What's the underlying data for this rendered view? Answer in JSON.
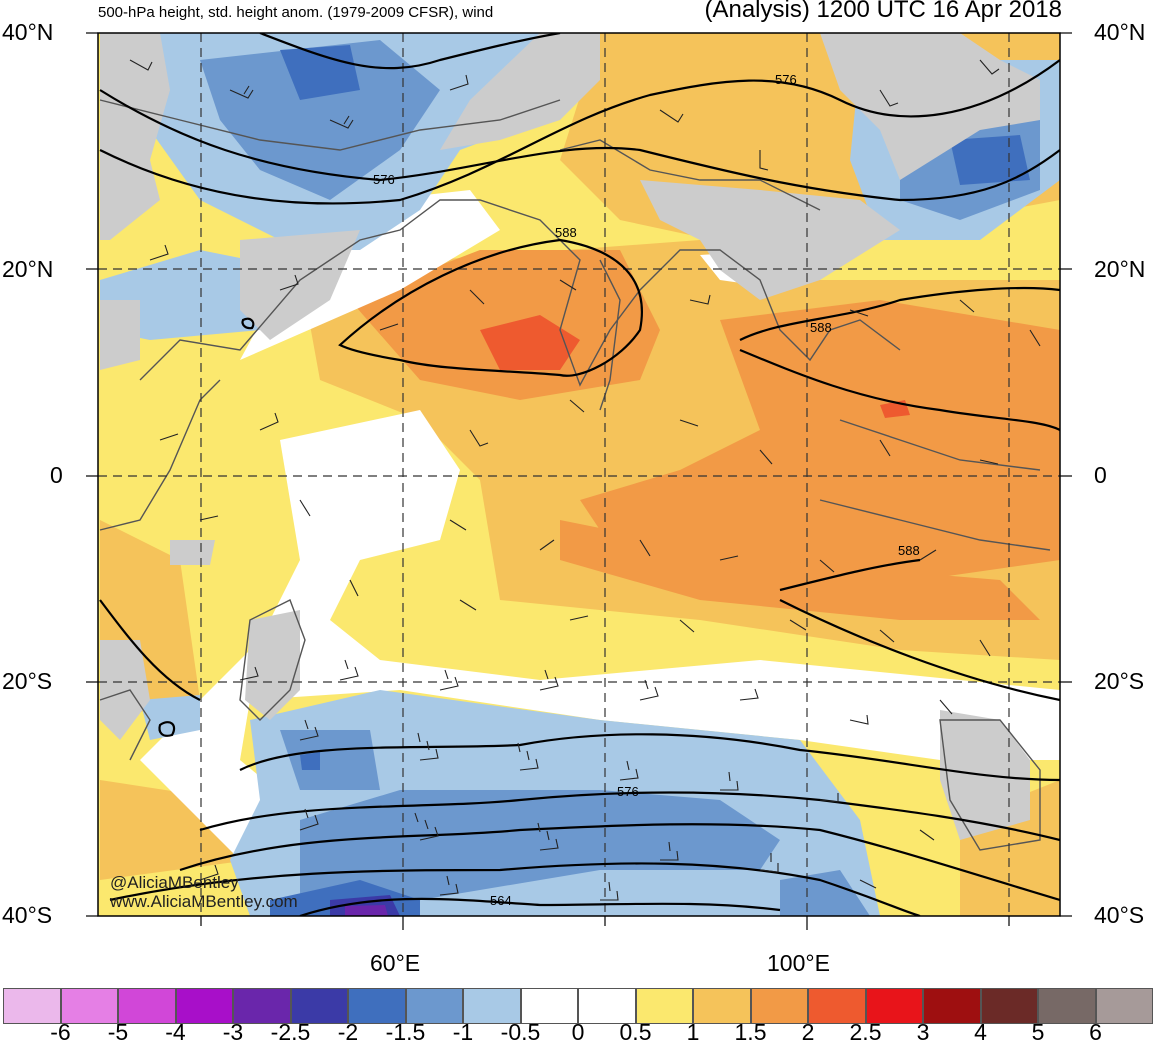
{
  "title_left": "500-hPa height, std. height anom. (1979-2009 CFSR), wind",
  "title_right": "(Analysis) 1200 UTC 16 Apr 2018",
  "lat_labels": {
    "n40": "40°N",
    "n20": "20°N",
    "eq": "0",
    "s20": "20°S",
    "s40": "40°S"
  },
  "lon_labels": {
    "e60": "60°E",
    "e100": "100°E"
  },
  "contour_labels": {
    "c576a": "576",
    "c576b": "576",
    "c576c": "576",
    "c588a": "588",
    "c588b": "588",
    "c588c": "588",
    "c564": "564"
  },
  "credit": {
    "handle": "@AliciaMBentley",
    "site": "www.AliciaMBentley.com"
  },
  "colorbar": {
    "colors": [
      "#ebb8eb",
      "#e57fe5",
      "#d147d8",
      "#a80fc9",
      "#6a26ab",
      "#3b3aa7",
      "#3f6fbe",
      "#6c98ce",
      "#a8c9e6",
      "#ffffff",
      "#ffffff",
      "#fbe86e",
      "#f5c35a",
      "#f29a46",
      "#ee5a2f",
      "#e8141a",
      "#9e0f10",
      "#6b2a27",
      "#776966",
      "#a69a99"
    ],
    "labels": [
      "-6",
      "-5",
      "-4",
      "-3",
      "-2.5",
      "-2",
      "-1.5",
      "-1",
      "-0.5",
      "0",
      "0.5",
      "1",
      "1.5",
      "2",
      "2.5",
      "3",
      "4",
      "5",
      "6"
    ]
  }
}
